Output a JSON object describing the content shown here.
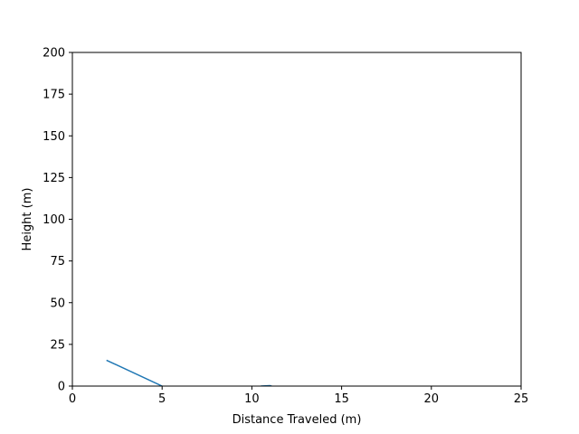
{
  "chart_data": {
    "type": "line",
    "title": "",
    "xlabel": "Distance Traveled (m)",
    "ylabel": "Height (m)",
    "xlim": [
      0,
      25
    ],
    "ylim": [
      0,
      200
    ],
    "xticks": [
      0,
      5,
      10,
      15,
      20,
      25
    ],
    "yticks": [
      0,
      25,
      50,
      75,
      100,
      125,
      150,
      175,
      200
    ],
    "xtick_labels": [
      "0",
      "5",
      "10",
      "15",
      "20",
      "25"
    ],
    "ytick_labels": [
      "0",
      "25",
      "50",
      "75",
      "100",
      "125",
      "150",
      "175",
      "200"
    ],
    "grid": false,
    "series": [
      {
        "color": "#1f77b4",
        "segments": [
          [
            [
              1.9,
              15.5
            ],
            [
              5.0,
              0.0
            ]
          ],
          [
            [
              10.5,
              0.0
            ],
            [
              11.0,
              0.3
            ],
            [
              11.1,
              0.0
            ]
          ]
        ]
      }
    ]
  }
}
